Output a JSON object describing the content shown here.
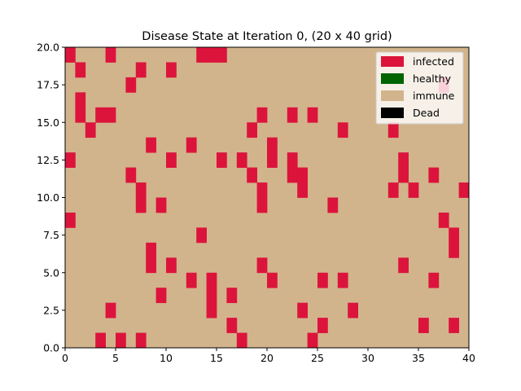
{
  "chart_data": {
    "type": "heatmap",
    "title": "Disease State at Iteration 0, (20 x 40 grid)",
    "xlabel": "",
    "ylabel": "",
    "xlim": [
      0,
      40
    ],
    "ylim": [
      0,
      20
    ],
    "x_ticks": [
      "0",
      "5",
      "10",
      "15",
      "20",
      "25",
      "30",
      "35",
      "40"
    ],
    "y_ticks": [
      "0.0",
      "2.5",
      "5.0",
      "7.5",
      "10.0",
      "12.5",
      "15.0",
      "17.5",
      "20.0"
    ],
    "grid": false,
    "legend_position": "top-right",
    "states": [
      {
        "label": "infected",
        "color": "#dc143c"
      },
      {
        "label": "healthy",
        "color": "#006400"
      },
      {
        "label": "immune",
        "color": "#d2b48c"
      },
      {
        "label": "Dead",
        "color": "#000000"
      }
    ],
    "background_state": "immune",
    "infected_cells": [
      [
        0,
        19
      ],
      [
        4,
        19
      ],
      [
        13,
        19
      ],
      [
        14,
        19
      ],
      [
        15,
        19
      ],
      [
        1,
        18
      ],
      [
        7,
        18
      ],
      [
        10,
        18
      ],
      [
        6,
        17
      ],
      [
        37,
        17
      ],
      [
        1,
        16
      ],
      [
        1,
        15
      ],
      [
        3,
        15
      ],
      [
        4,
        15
      ],
      [
        19,
        15
      ],
      [
        22,
        15
      ],
      [
        24,
        15
      ],
      [
        2,
        14
      ],
      [
        18,
        14
      ],
      [
        27,
        14
      ],
      [
        32,
        14
      ],
      [
        8,
        13
      ],
      [
        12,
        13
      ],
      [
        20,
        13
      ],
      [
        0,
        12
      ],
      [
        10,
        12
      ],
      [
        15,
        12
      ],
      [
        17,
        12
      ],
      [
        20,
        12
      ],
      [
        22,
        12
      ],
      [
        33,
        12
      ],
      [
        6,
        11
      ],
      [
        18,
        11
      ],
      [
        22,
        11
      ],
      [
        23,
        11
      ],
      [
        33,
        11
      ],
      [
        36,
        11
      ],
      [
        7,
        10
      ],
      [
        19,
        10
      ],
      [
        23,
        10
      ],
      [
        32,
        10
      ],
      [
        34,
        10
      ],
      [
        39,
        10
      ],
      [
        7,
        9
      ],
      [
        9,
        9
      ],
      [
        19,
        9
      ],
      [
        26,
        9
      ],
      [
        0,
        8
      ],
      [
        37,
        8
      ],
      [
        13,
        7
      ],
      [
        38,
        7
      ],
      [
        8,
        6
      ],
      [
        38,
        6
      ],
      [
        8,
        5
      ],
      [
        10,
        5
      ],
      [
        19,
        5
      ],
      [
        33,
        5
      ],
      [
        12,
        4
      ],
      [
        14,
        4
      ],
      [
        20,
        4
      ],
      [
        25,
        4
      ],
      [
        27,
        4
      ],
      [
        36,
        4
      ],
      [
        14,
        3
      ],
      [
        9,
        3
      ],
      [
        16,
        3
      ],
      [
        4,
        2
      ],
      [
        14,
        2
      ],
      [
        23,
        2
      ],
      [
        28,
        2
      ],
      [
        16,
        1
      ],
      [
        25,
        1
      ],
      [
        35,
        1
      ],
      [
        38,
        1
      ],
      [
        3,
        0
      ],
      [
        5,
        0
      ],
      [
        7,
        0
      ],
      [
        17,
        0
      ],
      [
        24,
        0
      ]
    ]
  }
}
